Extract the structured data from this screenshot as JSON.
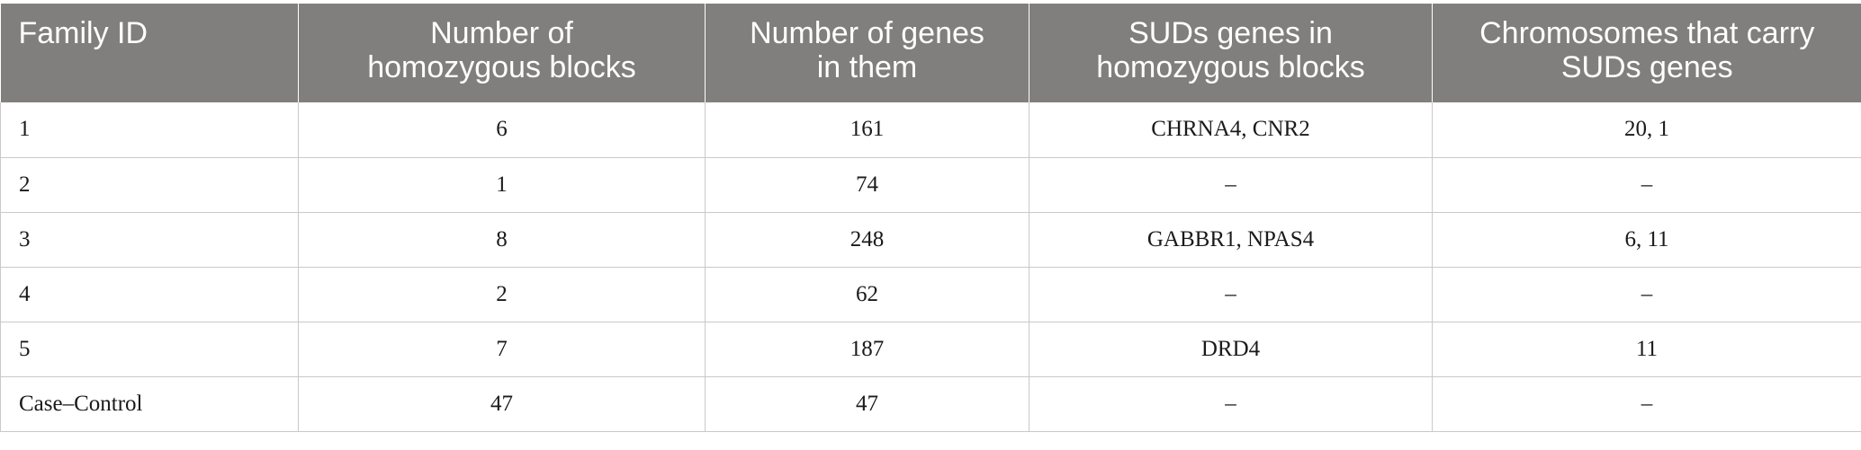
{
  "table": {
    "headers": [
      "Family ID",
      "Number of\nhomozygous blocks",
      "Number of genes\nin them",
      "SUDs genes in\nhomozygous blocks",
      "Chromosomes that carry\nSUDs genes"
    ],
    "rows": [
      [
        "1",
        "6",
        "161",
        "CHRNA4, CNR2",
        "20, 1"
      ],
      [
        "2",
        "1",
        "74",
        "–",
        "–"
      ],
      [
        "3",
        "8",
        "248",
        "GABBR1, NPAS4",
        "6, 11"
      ],
      [
        "4",
        "2",
        "62",
        "–",
        "–"
      ],
      [
        "5",
        "7",
        "187",
        "DRD4",
        "11"
      ],
      [
        "Case–Control",
        "47",
        "47",
        "–",
        "–"
      ]
    ]
  },
  "colors": {
    "header_background": "#807f7d",
    "header_text": "#ffffff",
    "grid_lines": "#c9c9c9"
  }
}
